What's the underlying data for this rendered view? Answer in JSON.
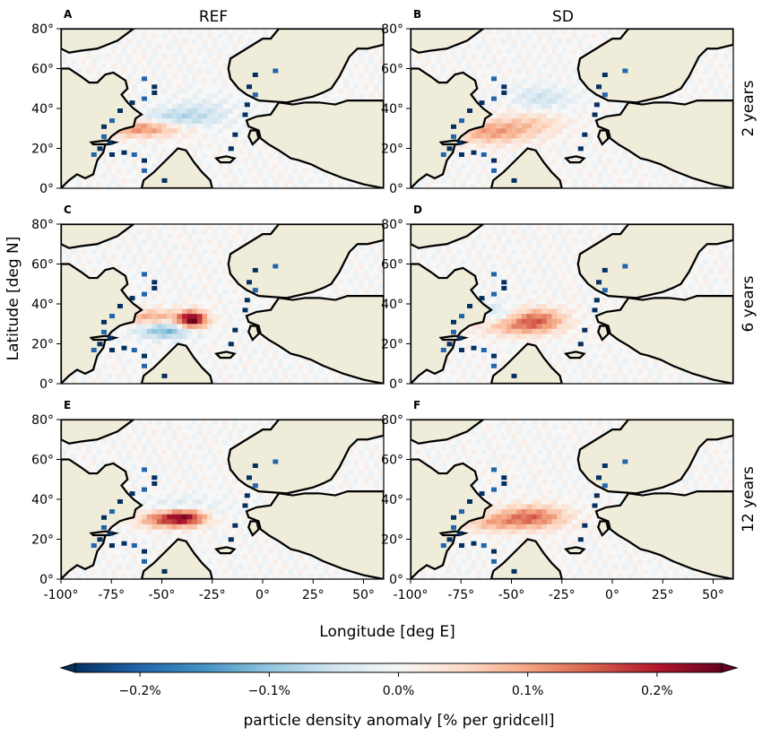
{
  "chart_data": {
    "type": "heatmap",
    "columns": [
      "REF",
      "SD"
    ],
    "rows": [
      "2 years",
      "6 years",
      "12 years"
    ],
    "panel_letters": [
      "A",
      "B",
      "C",
      "D",
      "E",
      "F"
    ],
    "xlabel": "Longitude [deg E]",
    "ylabel": "Latitude [deg N]",
    "xlim": [
      -100,
      60
    ],
    "ylim": [
      0,
      80
    ],
    "x_ticks": [
      -100,
      -75,
      -50,
      -25,
      0,
      25,
      50
    ],
    "x_tick_labels": [
      "-100°",
      "-75°",
      "-50°",
      "-25°",
      "0°",
      "25°",
      "50°"
    ],
    "y_ticks": [
      0,
      20,
      40,
      60,
      80
    ],
    "y_tick_labels": [
      "0°",
      "20°",
      "40°",
      "60°",
      "80°"
    ],
    "colorbar": {
      "label": "particle density anomaly [% per gridcell]",
      "range": [
        -0.25,
        0.25
      ],
      "ticks": [
        -0.2,
        -0.1,
        0.0,
        0.1,
        0.2
      ],
      "tick_labels": [
        "−0.2%",
        "−0.1%",
        "0.0%",
        "0.1%",
        "0.2%"
      ],
      "colormap": "RdBu_r",
      "extend": "both"
    },
    "land_color": "#efecd9",
    "panels": [
      {
        "letter": "A",
        "column": "REF",
        "row": "2 years",
        "patches": [
          {
            "lon": -60,
            "lat": 30,
            "sx": 14,
            "sy": 3,
            "amp": 0.12
          },
          {
            "lon": -45,
            "lat": 35,
            "sx": 12,
            "sy": 3,
            "amp": -0.06
          },
          {
            "lon": -30,
            "lat": 38,
            "sx": 12,
            "sy": 5,
            "amp": -0.04
          }
        ]
      },
      {
        "letter": "B",
        "column": "SD",
        "row": "2 years",
        "patches": [
          {
            "lon": -60,
            "lat": 28,
            "sx": 14,
            "sy": 4,
            "amp": 0.1
          },
          {
            "lon": -40,
            "lat": 33,
            "sx": 12,
            "sy": 4,
            "amp": 0.05
          },
          {
            "lon": -35,
            "lat": 45,
            "sx": 10,
            "sy": 4,
            "amp": -0.05
          }
        ]
      },
      {
        "letter": "C",
        "column": "REF",
        "row": "6 years",
        "patches": [
          {
            "lon": -35,
            "lat": 32,
            "sx": 5,
            "sy": 3,
            "amp": 0.26
          },
          {
            "lon": -55,
            "lat": 33,
            "sx": 10,
            "sy": 3,
            "amp": 0.1
          },
          {
            "lon": -48,
            "lat": 27,
            "sx": 10,
            "sy": 3,
            "amp": -0.12
          }
        ]
      },
      {
        "letter": "D",
        "column": "SD",
        "row": "6 years",
        "patches": [
          {
            "lon": -38,
            "lat": 32,
            "sx": 10,
            "sy": 4,
            "amp": 0.14
          },
          {
            "lon": -60,
            "lat": 36,
            "sx": 10,
            "sy": 3,
            "amp": -0.05
          },
          {
            "lon": -50,
            "lat": 28,
            "sx": 12,
            "sy": 3,
            "amp": 0.06
          }
        ]
      },
      {
        "letter": "E",
        "column": "REF",
        "row": "12 years",
        "patches": [
          {
            "lon": -38,
            "lat": 31,
            "sx": 7,
            "sy": 3,
            "amp": 0.2
          },
          {
            "lon": -50,
            "lat": 30,
            "sx": 8,
            "sy": 3,
            "amp": 0.13
          },
          {
            "lon": -40,
            "lat": 36,
            "sx": 12,
            "sy": 3,
            "amp": -0.05
          }
        ]
      },
      {
        "letter": "F",
        "column": "SD",
        "row": "12 years",
        "patches": [
          {
            "lon": -40,
            "lat": 31,
            "sx": 12,
            "sy": 4,
            "amp": 0.14
          },
          {
            "lon": -60,
            "lat": 28,
            "sx": 10,
            "sy": 3,
            "amp": 0.07
          }
        ]
      }
    ]
  }
}
